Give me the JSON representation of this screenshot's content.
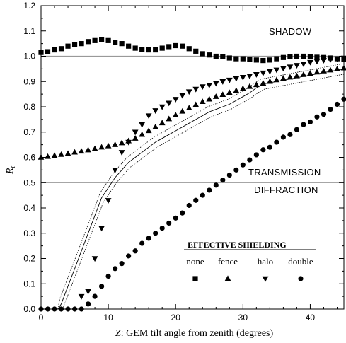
{
  "chart_data": {
    "type": "scatter",
    "xlabel_var": "Z",
    "xlabel_rest": ": GEM tilt angle from zenith (degrees)",
    "ylabel": "R",
    "ylabel_sub": "t",
    "xlim": [
      0,
      45
    ],
    "ylim": [
      0,
      1.2
    ],
    "xticks": [
      0,
      10,
      20,
      30,
      40
    ],
    "yticks": [
      "0.0",
      "0.1",
      "0.2",
      "0.3",
      "0.4",
      "0.5",
      "0.6",
      "0.7",
      "0.8",
      "0.9",
      "1.0",
      "1.1",
      "1.2"
    ],
    "reference_lines": [
      1.0,
      0.5
    ],
    "region_labels": {
      "shadow": "SHADOW",
      "transmission": "TRANSMISSION",
      "diffraction": "DIFFRACTION"
    },
    "legend_title": "EFFECTIVE SHIELDING",
    "series": [
      {
        "name": "none",
        "marker": "square",
        "x": [
          0,
          1,
          2,
          3,
          4,
          5,
          6,
          7,
          8,
          9,
          10,
          11,
          12,
          13,
          14,
          15,
          16,
          17,
          18,
          19,
          20,
          21,
          22,
          23,
          24,
          25,
          26,
          27,
          28,
          29,
          30,
          31,
          32,
          33,
          34,
          35,
          36,
          37,
          38,
          39,
          40,
          41,
          42,
          43,
          44,
          45
        ],
        "y": [
          1.015,
          1.018,
          1.025,
          1.03,
          1.04,
          1.045,
          1.05,
          1.058,
          1.062,
          1.065,
          1.062,
          1.055,
          1.05,
          1.04,
          1.032,
          1.026,
          1.025,
          1.025,
          1.032,
          1.038,
          1.042,
          1.04,
          1.03,
          1.02,
          1.01,
          1.005,
          1.0,
          0.998,
          0.993,
          0.99,
          0.99,
          0.988,
          0.985,
          0.983,
          0.985,
          0.99,
          0.995,
          0.998,
          1.0,
          1.0,
          0.998,
          0.996,
          0.995,
          0.993,
          0.99,
          0.988
        ]
      },
      {
        "name": "fence",
        "marker": "triangle-up",
        "x": [
          0,
          1,
          2,
          3,
          4,
          5,
          6,
          7,
          8,
          9,
          10,
          11,
          12,
          13,
          14,
          15,
          16,
          17,
          18,
          19,
          20,
          21,
          22,
          23,
          24,
          25,
          26,
          27,
          28,
          29,
          30,
          31,
          32,
          33,
          34,
          35,
          36,
          37,
          38,
          39,
          40,
          41,
          42,
          43,
          44,
          45
        ],
        "y": [
          0.6,
          0.603,
          0.607,
          0.611,
          0.615,
          0.62,
          0.624,
          0.629,
          0.634,
          0.64,
          0.645,
          0.65,
          0.657,
          0.665,
          0.675,
          0.69,
          0.705,
          0.72,
          0.736,
          0.752,
          0.767,
          0.782,
          0.795,
          0.808,
          0.82,
          0.83,
          0.84,
          0.848,
          0.856,
          0.864,
          0.872,
          0.88,
          0.887,
          0.893,
          0.9,
          0.906,
          0.912,
          0.917,
          0.922,
          0.927,
          0.932,
          0.937,
          0.941,
          0.945,
          0.949,
          0.953
        ]
      },
      {
        "name": "halo",
        "marker": "triangle-down",
        "x": [
          6,
          7,
          8,
          9,
          10,
          11,
          12,
          13,
          14,
          15,
          16,
          17,
          18,
          19,
          20,
          21,
          22,
          23,
          24,
          25,
          26,
          27,
          28,
          29,
          30,
          31,
          32,
          33,
          34,
          35,
          36,
          37,
          38,
          39,
          40,
          41,
          42,
          43,
          44,
          45
        ],
        "y": [
          0.05,
          0.07,
          0.2,
          0.32,
          0.43,
          0.55,
          0.62,
          0.66,
          0.7,
          0.73,
          0.765,
          0.785,
          0.8,
          0.815,
          0.83,
          0.845,
          0.86,
          0.87,
          0.88,
          0.886,
          0.893,
          0.9,
          0.906,
          0.912,
          0.917,
          0.922,
          0.928,
          0.934,
          0.94,
          0.946,
          0.952,
          0.958,
          0.964,
          0.97,
          0.976,
          0.98,
          0.984,
          0.987,
          0.99,
          0.993
        ]
      },
      {
        "name": "double",
        "marker": "circle",
        "x": [
          0,
          1,
          2,
          3,
          4,
          5,
          6,
          7,
          8,
          9,
          10,
          11,
          12,
          13,
          14,
          15,
          16,
          17,
          18,
          19,
          20,
          21,
          22,
          23,
          24,
          25,
          26,
          27,
          28,
          29,
          30,
          31,
          32,
          33,
          34,
          35,
          36,
          37,
          38,
          39,
          40,
          41,
          42,
          43,
          44,
          45
        ],
        "y": [
          0.0,
          0.0,
          0.0,
          0.0,
          0.0,
          0.0,
          0.0,
          0.02,
          0.05,
          0.09,
          0.13,
          0.16,
          0.18,
          0.21,
          0.23,
          0.26,
          0.28,
          0.3,
          0.32,
          0.34,
          0.36,
          0.38,
          0.41,
          0.43,
          0.45,
          0.47,
          0.49,
          0.51,
          0.53,
          0.55,
          0.57,
          0.59,
          0.61,
          0.63,
          0.64,
          0.66,
          0.68,
          0.69,
          0.71,
          0.73,
          0.74,
          0.76,
          0.77,
          0.79,
          0.81,
          0.83
        ]
      }
    ],
    "model_curve": {
      "x": [
        0,
        1,
        2,
        2.5,
        3,
        4,
        5,
        6,
        7,
        8,
        9,
        10,
        11,
        12,
        13,
        14,
        15,
        16,
        17,
        18,
        19,
        20,
        21,
        22,
        23,
        24,
        25,
        26,
        27,
        28,
        29,
        30,
        31,
        32,
        33,
        34,
        35,
        36,
        37,
        38,
        39,
        40,
        41,
        42,
        43,
        44,
        45
      ],
      "y": [
        0,
        0,
        0,
        0,
        0.02,
        0.09,
        0.16,
        0.23,
        0.3,
        0.37,
        0.44,
        0.48,
        0.52,
        0.55,
        0.58,
        0.6,
        0.62,
        0.64,
        0.66,
        0.675,
        0.69,
        0.705,
        0.72,
        0.735,
        0.75,
        0.765,
        0.78,
        0.79,
        0.8,
        0.81,
        0.825,
        0.84,
        0.855,
        0.875,
        0.89,
        0.895,
        0.9,
        0.905,
        0.91,
        0.915,
        0.92,
        0.925,
        0.93,
        0.935,
        0.94,
        0.945,
        0.95
      ],
      "band": 0.02
    }
  }
}
